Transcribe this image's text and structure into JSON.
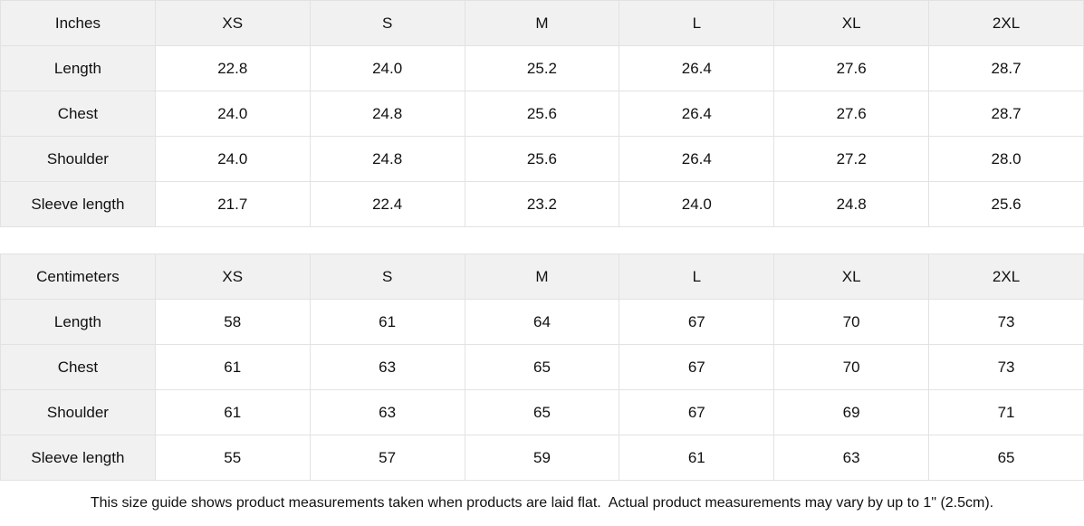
{
  "tables": [
    {
      "unit_label": "Inches",
      "sizes": [
        "XS",
        "S",
        "M",
        "L",
        "XL",
        "2XL"
      ],
      "rows": [
        {
          "label": "Length",
          "values": [
            "22.8",
            "24.0",
            "25.2",
            "26.4",
            "27.6",
            "28.7"
          ]
        },
        {
          "label": "Chest",
          "values": [
            "24.0",
            "24.8",
            "25.6",
            "26.4",
            "27.6",
            "28.7"
          ]
        },
        {
          "label": "Shoulder",
          "values": [
            "24.0",
            "24.8",
            "25.6",
            "26.4",
            "27.2",
            "28.0"
          ]
        },
        {
          "label": "Sleeve length",
          "values": [
            "21.7",
            "22.4",
            "23.2",
            "24.0",
            "24.8",
            "25.6"
          ]
        }
      ]
    },
    {
      "unit_label": "Centimeters",
      "sizes": [
        "XS",
        "S",
        "M",
        "L",
        "XL",
        "2XL"
      ],
      "rows": [
        {
          "label": "Length",
          "values": [
            "58",
            "61",
            "64",
            "67",
            "70",
            "73"
          ]
        },
        {
          "label": "Chest",
          "values": [
            "61",
            "63",
            "65",
            "67",
            "70",
            "73"
          ]
        },
        {
          "label": "Shoulder",
          "values": [
            "61",
            "63",
            "65",
            "67",
            "69",
            "71"
          ]
        },
        {
          "label": "Sleeve length",
          "values": [
            "55",
            "57",
            "59",
            "61",
            "63",
            "65"
          ]
        }
      ]
    }
  ],
  "footer_note": "This size guide shows product measurements taken when products are laid flat.  Actual product measurements may vary by up to 1\" (2.5cm).",
  "colors": {
    "header_bg": "#f1f1f1",
    "border": "#e2e2e2",
    "text": "#111111"
  }
}
